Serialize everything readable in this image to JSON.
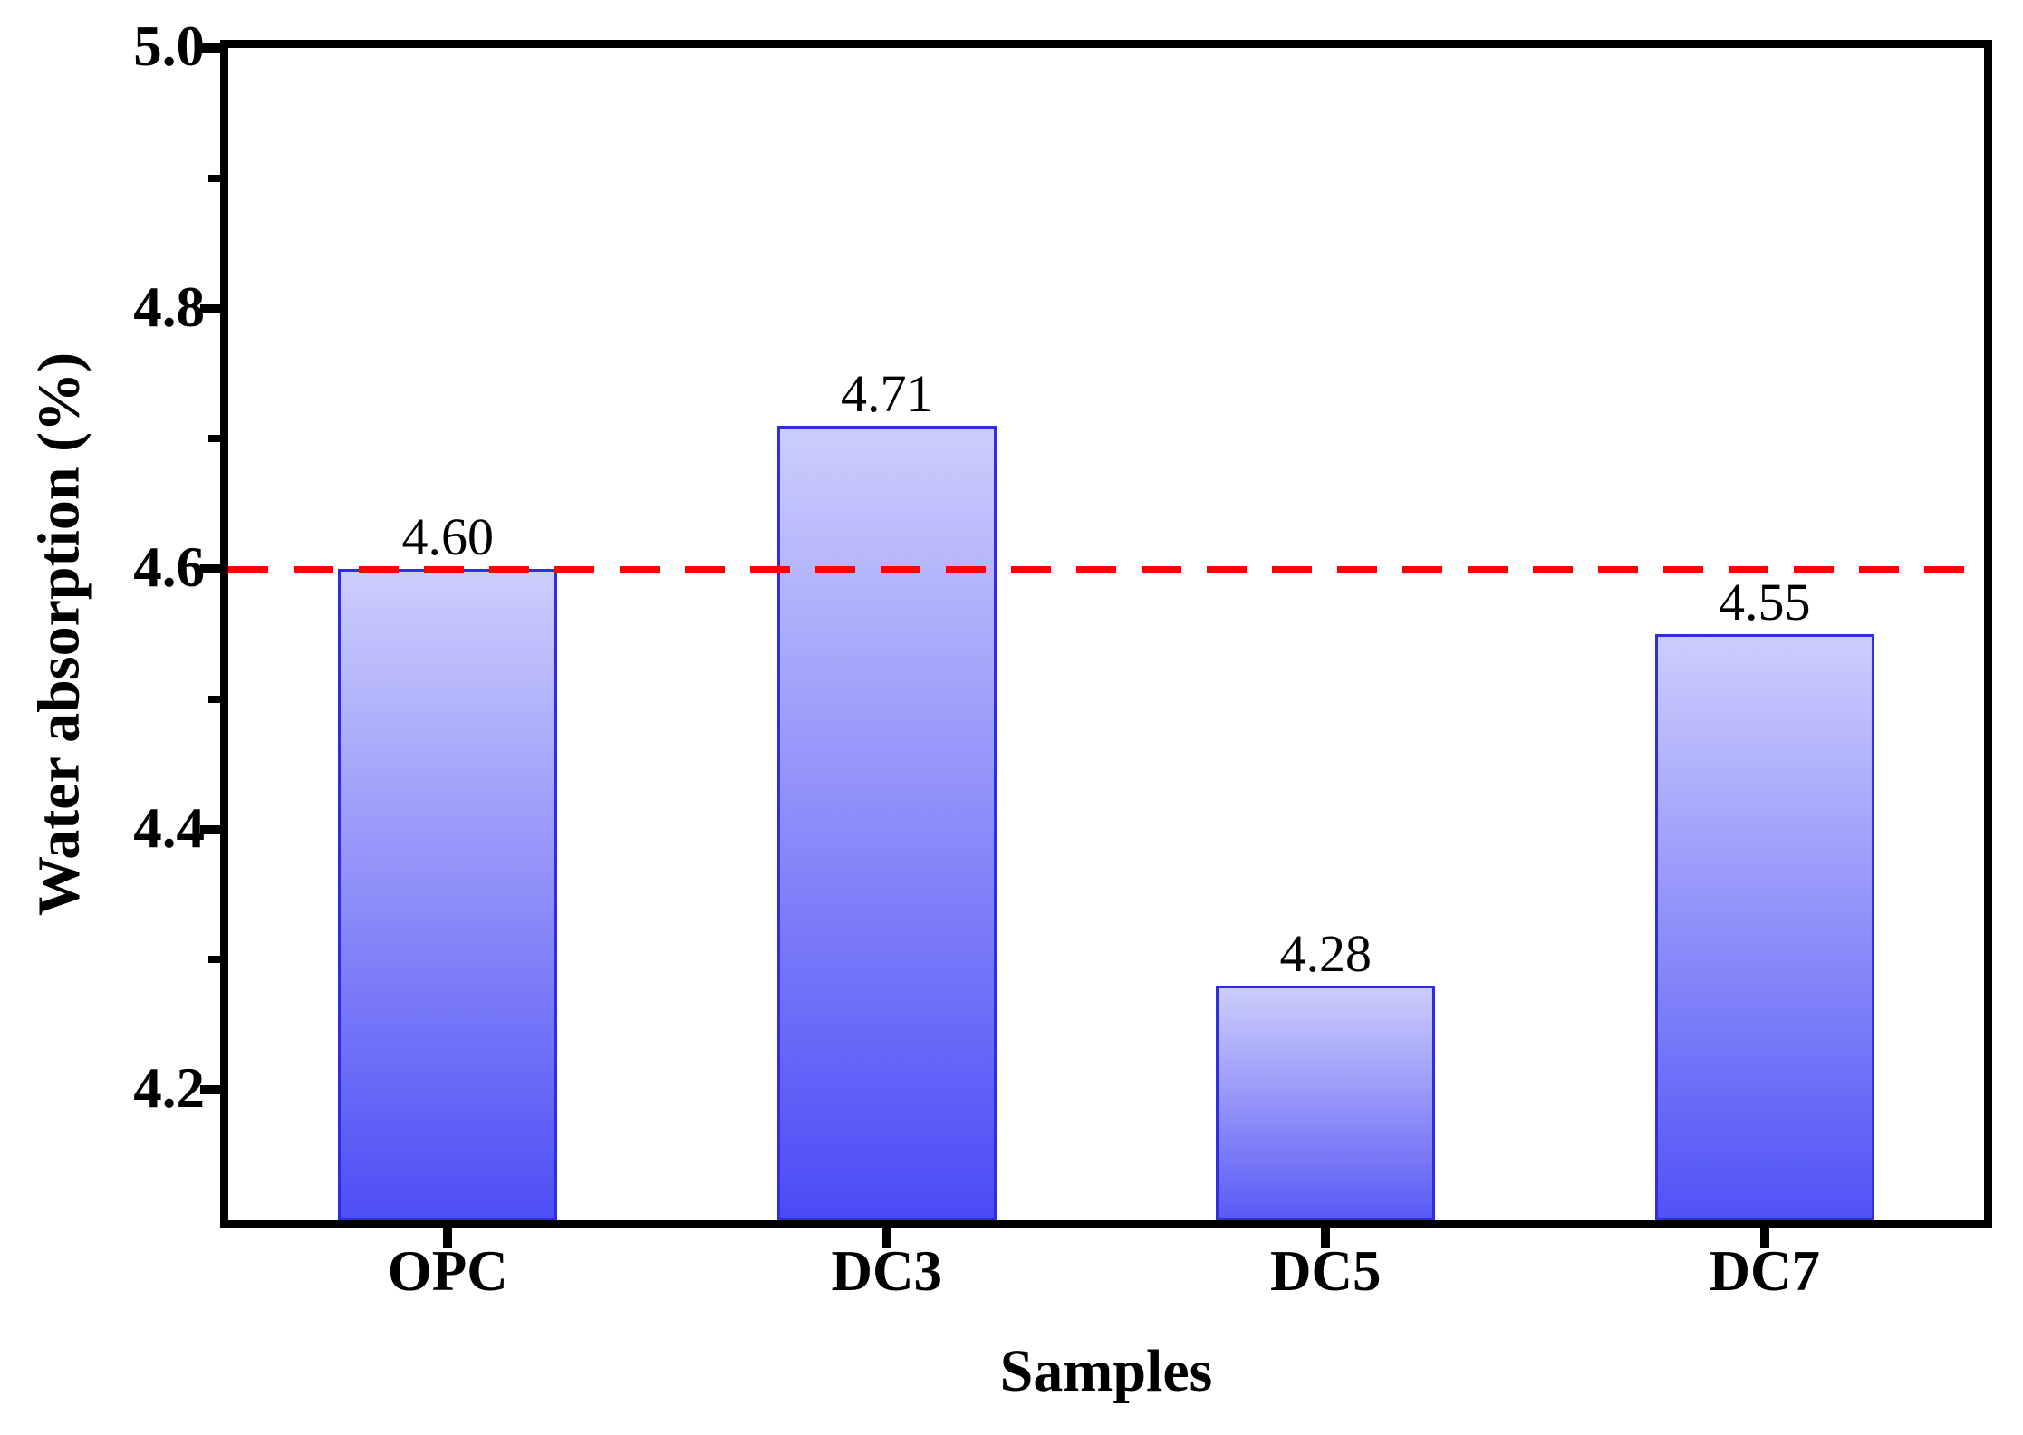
{
  "chart_data": {
    "type": "bar",
    "title": "",
    "xlabel": "Samples",
    "ylabel": "Water absorption (%)",
    "categories": [
      "OPC",
      "DC3",
      "DC5",
      "DC7"
    ],
    "values": [
      4.6,
      4.71,
      4.28,
      4.55
    ],
    "value_labels": [
      "4.60",
      "4.71",
      "4.28",
      "4.55"
    ],
    "ylim": [
      4.1,
      5.0
    ],
    "yticks_major": [
      4.2,
      4.4,
      4.6,
      4.8,
      5.0
    ],
    "ytick_labels": [
      "4.2",
      "4.4",
      "4.6",
      "4.8",
      "5.0"
    ],
    "yticks_minor": [
      4.3,
      4.5,
      4.7,
      4.9
    ],
    "grid": false,
    "legend": null,
    "reference_line": {
      "y": 4.6,
      "style": "dashed",
      "color": "#ff0000"
    },
    "colors": {
      "bar_border": "#2e2ee0",
      "bar_gradient_top": "#cdcdfc",
      "bar_gradient_bottoms": [
        "#4e4ef6",
        "#4b4bf7",
        "#5a5af5",
        "#5052f6"
      ],
      "frame": "#000000",
      "text": "#000000",
      "background": "#ffffff"
    }
  }
}
